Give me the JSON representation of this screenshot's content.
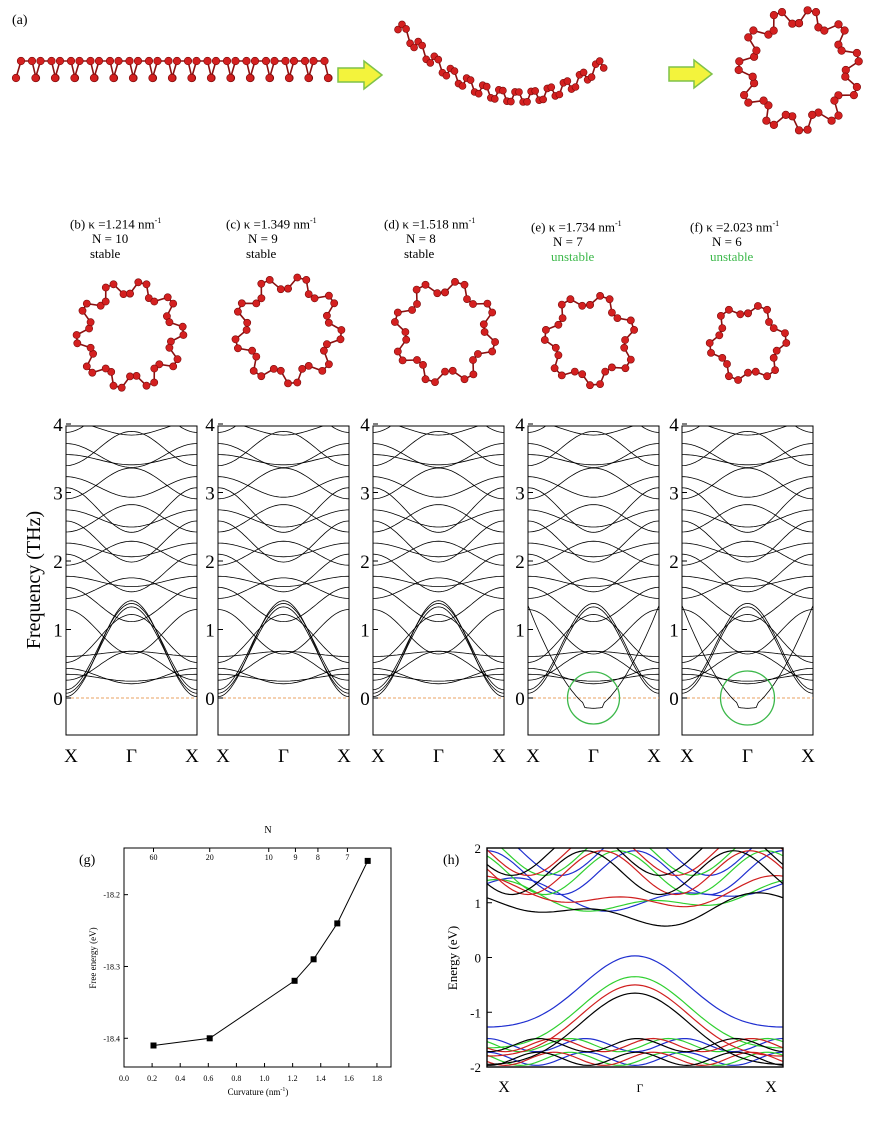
{
  "panel_a": {
    "label": "(a)"
  },
  "structures": [
    {
      "label": "(b)",
      "kappa": "κ =1.214 nm",
      "kappa_exp": "-1",
      "n": "N = 10",
      "state": "stable",
      "units": 10
    },
    {
      "label": "(c)",
      "kappa": "κ =1.349 nm",
      "kappa_exp": "-1",
      "n": "N = 9",
      "state": "stable",
      "units": 9
    },
    {
      "label": "(d)",
      "kappa": "κ =1.518 nm",
      "kappa_exp": "-1",
      "n": "N = 8",
      "state": "stable",
      "units": 8
    },
    {
      "label": "(e)",
      "kappa": "κ =1.734 nm",
      "kappa_exp": "-1",
      "n": "N = 7",
      "state": "unstable",
      "units": 7
    },
    {
      "label": "(f)",
      "kappa": "κ =2.023 nm",
      "kappa_exp": "-1",
      "n": "N = 6",
      "state": "unstable",
      "units": 6
    }
  ],
  "colors": {
    "atom": "#d42020",
    "bond": "#8b1010",
    "arrow_fill": "#f3f33c",
    "arrow_stroke": "#7fc24a",
    "unstable_circle": "#3cb84a",
    "zero_line": "#e8a060",
    "blue": "#1f2fd0",
    "red": "#d01f1f",
    "green": "#2fd02f",
    "black": "#000000"
  },
  "phonon": {
    "ylabel": "Frequency (THz)",
    "yticks": [
      "0",
      "1",
      "2",
      "3",
      "4"
    ],
    "xticks": [
      "X",
      "Γ",
      "X"
    ]
  },
  "panel_g": {
    "label": "(g)",
    "top_label": "N",
    "top_ticks": [
      "60",
      "20",
      "10",
      "9",
      "8",
      "7"
    ],
    "xlabel": "Curvature (nm",
    "xlabel_exp": "-1",
    "xlabel_end": ")",
    "ylabel": "Free energy (eV)",
    "xticks": [
      "0.0",
      "0.2",
      "0.4",
      "0.6",
      "0.8",
      "1.0",
      "1.2",
      "1.4",
      "1.6",
      "1.8"
    ],
    "yticks": [
      "-18.2",
      "-18.3",
      "-18.4"
    ]
  },
  "panel_h": {
    "label": "(h)",
    "ylabel": "Energy (eV)",
    "yticks": [
      "2",
      "1",
      "0",
      "-1",
      "-2"
    ],
    "xticks": [
      "X",
      "Γ",
      "X"
    ]
  },
  "chart_data": [
    {
      "type": "scatter",
      "panel": "(g)",
      "xlabel": "Curvature (nm-1)",
      "ylabel": "Free energy (eV)",
      "top_axis_label": "N",
      "xlim": [
        0.0,
        1.9
      ],
      "ylim": [
        -18.44,
        -18.135
      ],
      "x": [
        0.21,
        0.61,
        1.214,
        1.349,
        1.518,
        1.734
      ],
      "y": [
        -18.41,
        -18.4,
        -18.32,
        -18.29,
        -18.24,
        -18.153
      ],
      "markers": "filled squares connected by line"
    },
    {
      "type": "line",
      "panel": "(h)",
      "ylabel": "Energy (eV)",
      "ylim": [
        -2,
        2
      ],
      "x": [
        "X",
        "Γ",
        "X"
      ],
      "series": [
        {
          "color": "blue",
          "conduction_min": 0.95,
          "valence_max": -0.07
        },
        {
          "color": "green",
          "conduction_min": 0.88,
          "valence_max": -0.45
        },
        {
          "color": "red",
          "conduction_min": 0.95,
          "valence_max": -0.6
        },
        {
          "color": "black",
          "conduction_min": 0.67,
          "valence_max": -0.75
        }
      ]
    }
  ]
}
